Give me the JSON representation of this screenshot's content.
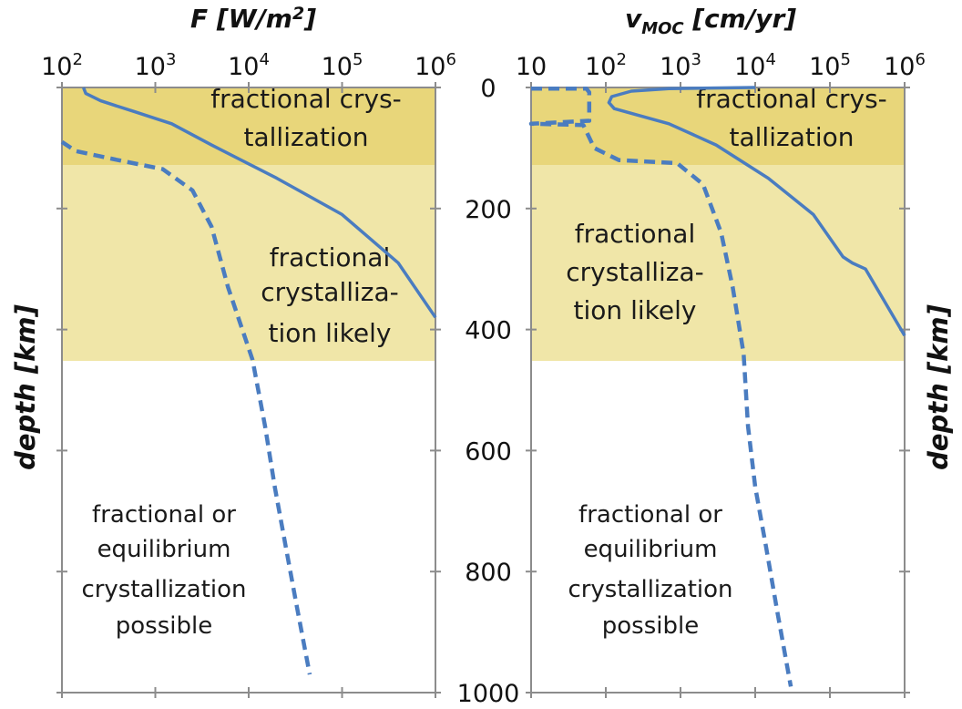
{
  "chart_data": [
    {
      "type": "line",
      "xlabel_main": "F [W/m",
      "xlabel_sup": "2",
      "xlabel_end": "]",
      "xscale": "log",
      "xlim": [
        100,
        1000000
      ],
      "x_ticks": [
        {
          "base": "10",
          "exp": "2"
        },
        {
          "base": "10",
          "exp": "3"
        },
        {
          "base": "10",
          "exp": "4"
        },
        {
          "base": "10",
          "exp": "5"
        },
        {
          "base": "10",
          "exp": "6"
        }
      ],
      "ylabel": "depth [km]",
      "ylim": [
        0,
        1000
      ],
      "y_inverted": true,
      "bands": [
        {
          "from": 0,
          "to": 128,
          "color": "#e8d67a",
          "text_lines": [
            "fractional crys-",
            "tallization"
          ]
        },
        {
          "from": 128,
          "to": 452,
          "color": "#f0e6a8",
          "text_lines": [
            "fractional",
            "crystalliza-",
            "tion likely"
          ]
        },
        {
          "from": 452,
          "to": 1000,
          "color": "#ffffff",
          "text_lines": [
            "fractional or",
            "equilibrium",
            "crystallization",
            "possible"
          ]
        }
      ],
      "series": [
        {
          "style": "solid",
          "color": "#4a7cc0",
          "points": [
            [
              170,
              0
            ],
            [
              180,
              10
            ],
            [
              260,
              22
            ],
            [
              600,
              40
            ],
            [
              1500,
              60
            ],
            [
              4000,
              95
            ],
            [
              20000,
              150
            ],
            [
              100000,
              210
            ],
            [
              400000,
              290
            ],
            [
              1000000,
              380
            ]
          ]
        },
        {
          "style": "dashed",
          "color": "#4a7cc0",
          "points": [
            [
              100,
              90
            ],
            [
              140,
              105
            ],
            [
              400,
              120
            ],
            [
              1200,
              135
            ],
            [
              2500,
              170
            ],
            [
              4000,
              230
            ],
            [
              6000,
              330
            ],
            [
              11000,
              450
            ],
            [
              15000,
              560
            ],
            [
              19000,
              660
            ],
            [
              25000,
              760
            ],
            [
              33000,
              860
            ],
            [
              45000,
              970
            ]
          ]
        }
      ]
    },
    {
      "type": "line",
      "xlabel_main": "v",
      "xlabel_sub": "MOC",
      "xlabel_end": " [cm/yr]",
      "xscale": "log",
      "xlim": [
        10,
        1000000
      ],
      "x_ticks": [
        {
          "base": "10",
          "exp": ""
        },
        {
          "base": "10",
          "exp": "2"
        },
        {
          "base": "10",
          "exp": "3"
        },
        {
          "base": "10",
          "exp": "4"
        },
        {
          "base": "10",
          "exp": "5"
        },
        {
          "base": "10",
          "exp": "6"
        }
      ],
      "ylabel": "depth [km]",
      "ylim": [
        0,
        1000
      ],
      "y_inverted": true,
      "y_ticks": [
        "0",
        "200",
        "400",
        "600",
        "800",
        "1000"
      ],
      "bands": [
        {
          "from": 0,
          "to": 128,
          "color": "#e8d67a",
          "text_lines": [
            "fractional crys-",
            "tallization"
          ]
        },
        {
          "from": 128,
          "to": 452,
          "color": "#f0e6a8",
          "text_lines": [
            "fractional",
            "crystalliza-",
            "tion likely"
          ]
        },
        {
          "from": 452,
          "to": 1000,
          "color": "#ffffff",
          "text_lines": [
            "fractional or",
            "equilibrium",
            "crystallization",
            "possible"
          ]
        }
      ],
      "series": [
        {
          "style": "solid",
          "color": "#4a7cc0",
          "points": [
            [
              10000,
              0
            ],
            [
              700,
              2
            ],
            [
              220,
              6
            ],
            [
              120,
              15
            ],
            [
              110,
              25
            ],
            [
              130,
              35
            ],
            [
              700,
              60
            ],
            [
              3000,
              95
            ],
            [
              15000,
              150
            ],
            [
              60000,
              210
            ],
            [
              150000,
              280
            ],
            [
              200000,
              290
            ],
            [
              300000,
              300
            ],
            [
              1000000,
              410
            ]
          ]
        },
        {
          "style": "dashed",
          "color": "#4a7cc0",
          "points": [
            [
              10,
              2
            ],
            [
              55,
              2
            ],
            [
              60,
              8
            ],
            [
              60,
              55
            ],
            [
              10,
              60
            ],
            [
              50,
              62
            ],
            [
              70,
              100
            ],
            [
              150,
              120
            ],
            [
              900,
              125
            ],
            [
              2000,
              160
            ],
            [
              3500,
              240
            ],
            [
              5000,
              330
            ],
            [
              7000,
              440
            ],
            [
              8000,
              560
            ],
            [
              10000,
              660
            ],
            [
              14000,
              760
            ],
            [
              20000,
              870
            ],
            [
              30000,
              990
            ]
          ]
        }
      ]
    }
  ]
}
